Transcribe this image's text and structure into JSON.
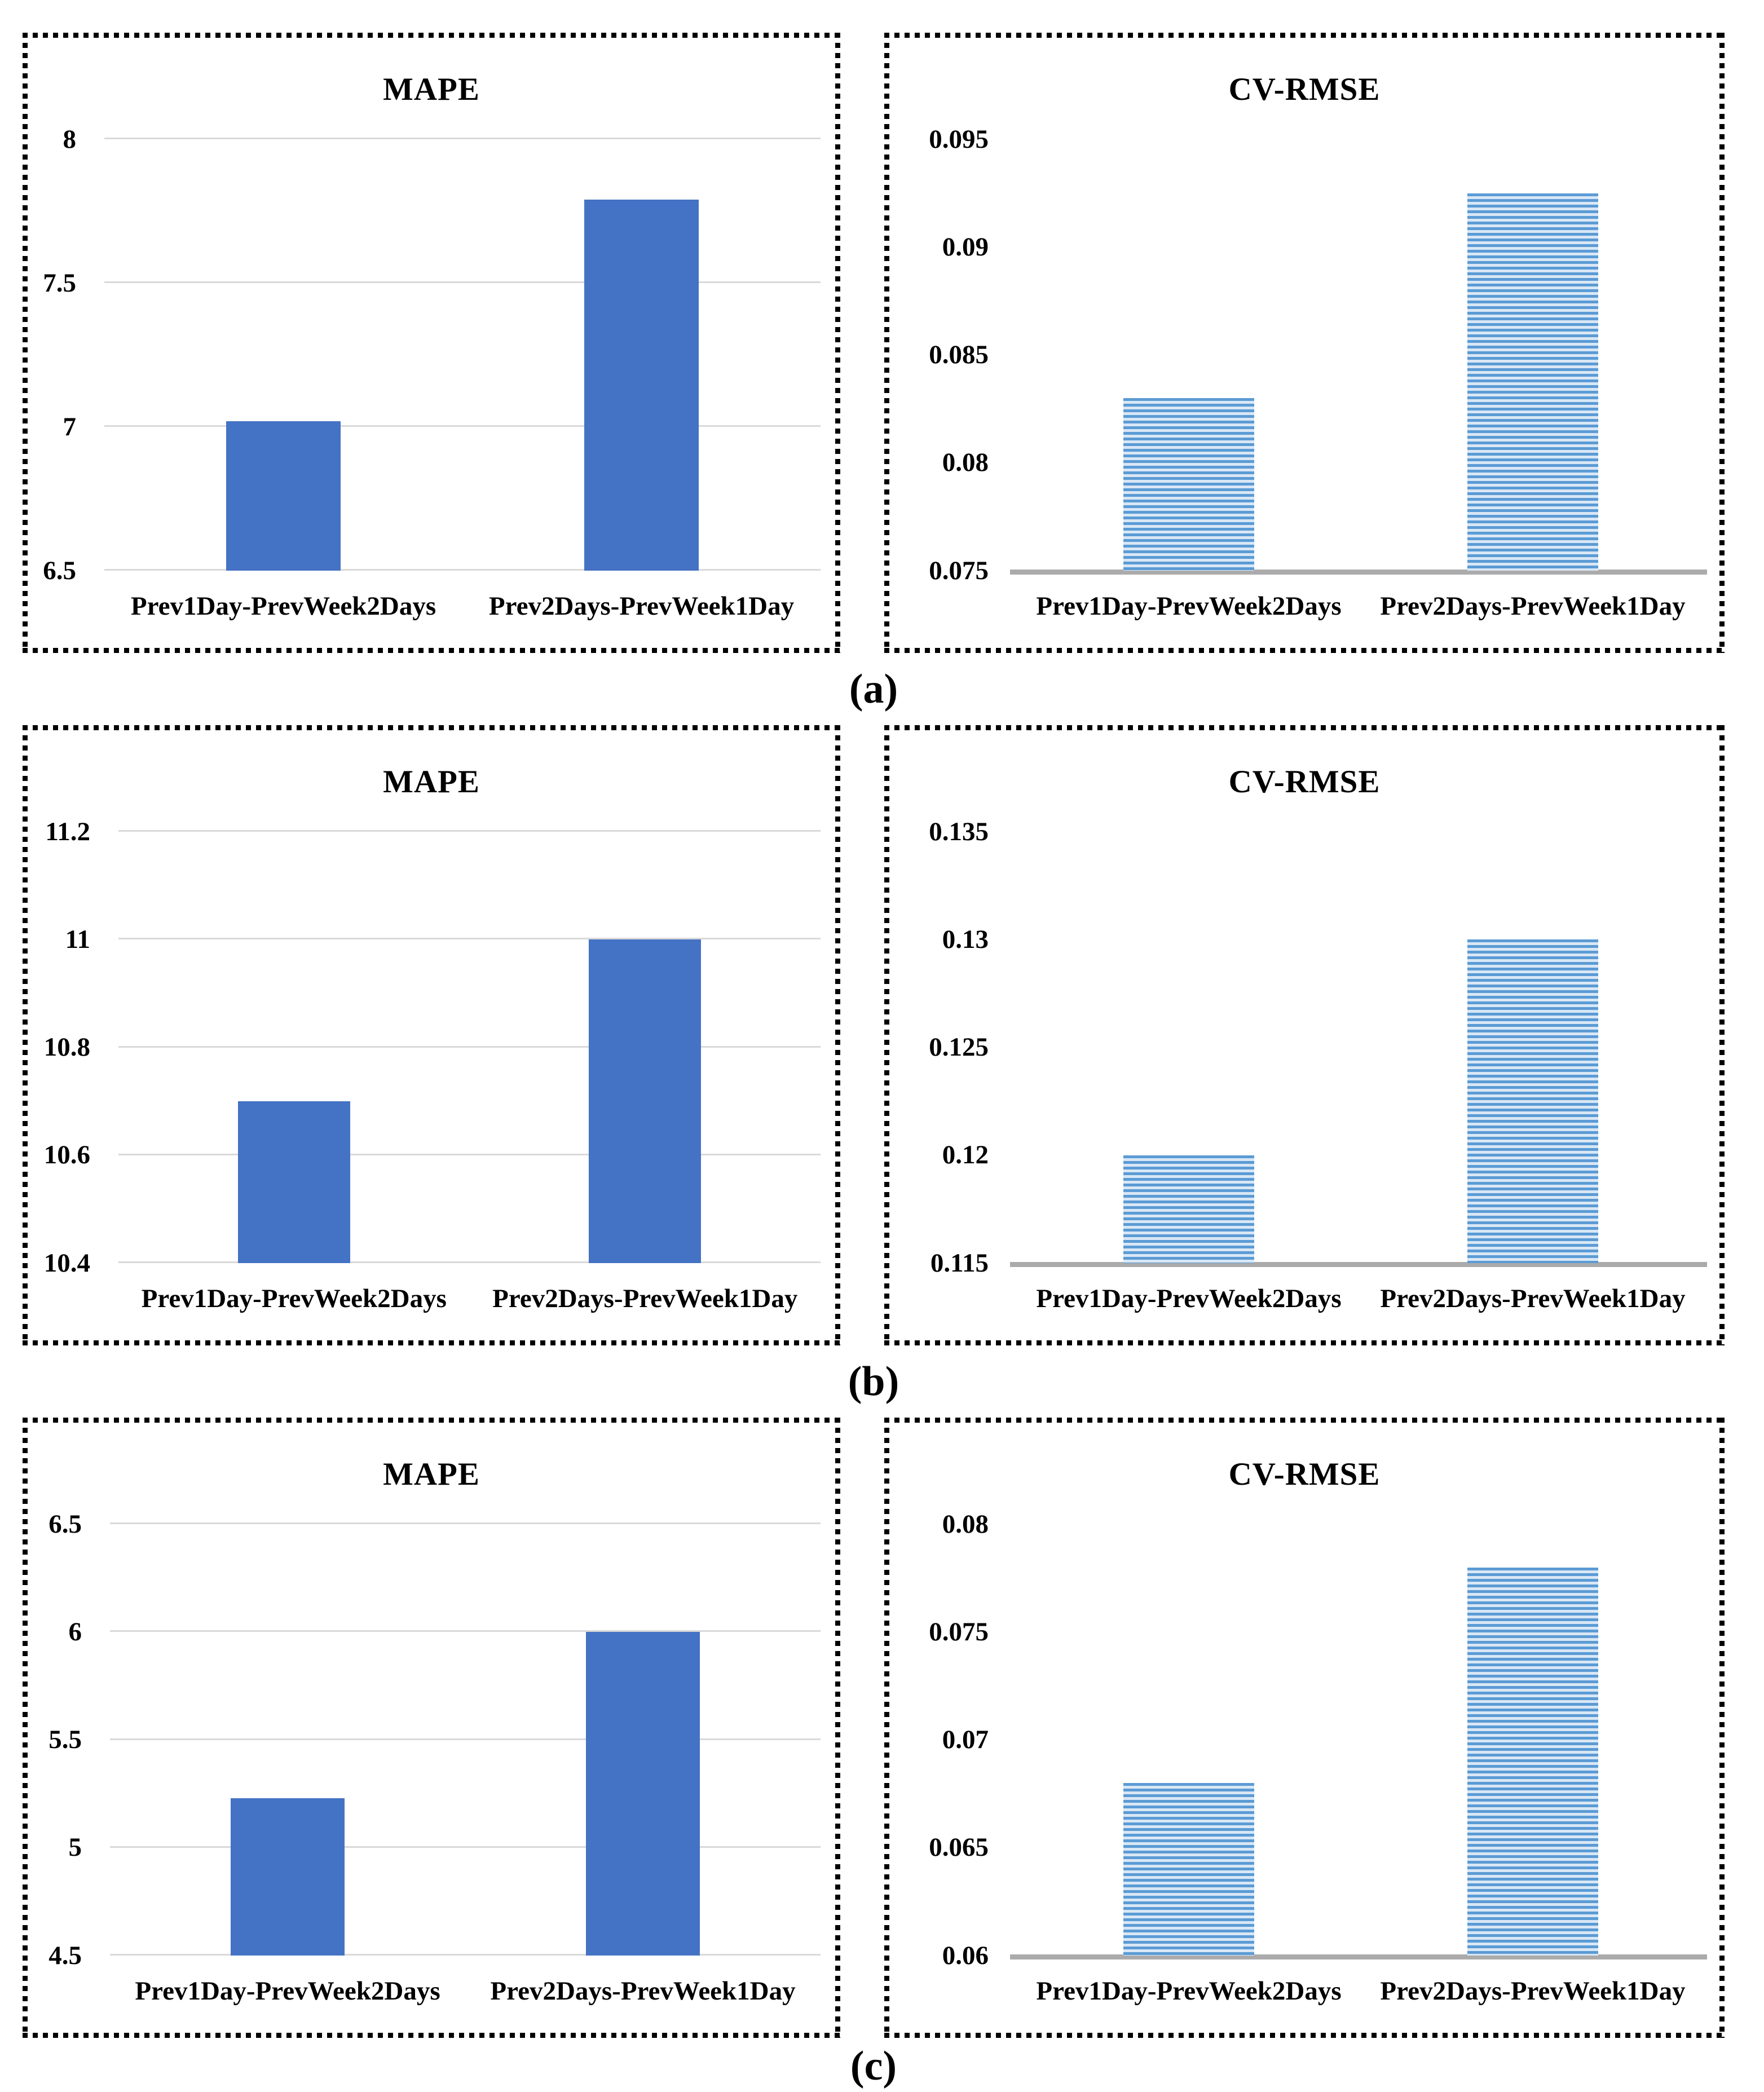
{
  "panel_labels": [
    "(a)",
    "(b)",
    "(c)"
  ],
  "colors": {
    "solid_bar": "#4472C4",
    "stripe_dark": "#5B9BD5",
    "stripe_light": "#D9E7F5",
    "gridline": "#D9D9D9",
    "axis_baseline": "#ABABAB",
    "border": "#000000",
    "text": "#000000",
    "background": "#FFFFFF"
  },
  "chart_data": [
    {
      "panel": "a",
      "side": "left",
      "type": "bar",
      "title": "MAPE",
      "categories": [
        "Prev1Day-PrevWeek2Days",
        "Prev2Days-PrevWeek1Day"
      ],
      "values": [
        7.02,
        7.79
      ],
      "ylim": [
        6.5,
        8
      ],
      "yticks": [
        "6.5",
        "7",
        "7.5",
        "8"
      ],
      "grid": true,
      "baseline": false,
      "bar_style": "solid",
      "xlabel": "",
      "ylabel": ""
    },
    {
      "panel": "a",
      "side": "right",
      "type": "bar",
      "title": "CV-RMSE",
      "categories": [
        "Prev1Day-PrevWeek2Days",
        "Prev2Days-PrevWeek1Day"
      ],
      "values": [
        0.083,
        0.0925
      ],
      "ylim": [
        0.075,
        0.095
      ],
      "yticks": [
        "0.075",
        "0.08",
        "0.085",
        "0.09",
        "0.095"
      ],
      "grid": false,
      "baseline": true,
      "bar_style": "striped",
      "xlabel": "",
      "ylabel": ""
    },
    {
      "panel": "b",
      "side": "left",
      "type": "bar",
      "title": "MAPE",
      "categories": [
        "Prev1Day-PrevWeek2Days",
        "Prev2Days-PrevWeek1Day"
      ],
      "values": [
        10.7,
        11.0
      ],
      "ylim": [
        10.4,
        11.2
      ],
      "yticks": [
        "10.4",
        "10.6",
        "10.8",
        "11",
        "11.2"
      ],
      "grid": true,
      "baseline": false,
      "bar_style": "solid",
      "xlabel": "",
      "ylabel": ""
    },
    {
      "panel": "b",
      "side": "right",
      "type": "bar",
      "title": "CV-RMSE",
      "categories": [
        "Prev1Day-PrevWeek2Days",
        "Prev2Days-PrevWeek1Day"
      ],
      "values": [
        0.12,
        0.13
      ],
      "ylim": [
        0.115,
        0.135
      ],
      "yticks": [
        "0.115",
        "0.12",
        "0.125",
        "0.13",
        "0.135"
      ],
      "grid": false,
      "baseline": true,
      "bar_style": "striped",
      "xlabel": "",
      "ylabel": ""
    },
    {
      "panel": "c",
      "side": "left",
      "type": "bar",
      "title": "MAPE",
      "categories": [
        "Prev1Day-PrevWeek2Days",
        "Prev2Days-PrevWeek1Day"
      ],
      "values": [
        5.23,
        6.0
      ],
      "ylim": [
        4.5,
        6.5
      ],
      "yticks": [
        "4.5",
        "5",
        "5.5",
        "6",
        "6.5"
      ],
      "grid": true,
      "baseline": false,
      "bar_style": "solid",
      "xlabel": "",
      "ylabel": ""
    },
    {
      "panel": "c",
      "side": "right",
      "type": "bar",
      "title": "CV-RMSE",
      "categories": [
        "Prev1Day-PrevWeek2Days",
        "Prev2Days-PrevWeek1Day"
      ],
      "values": [
        0.068,
        0.078
      ],
      "ylim": [
        0.06,
        0.08
      ],
      "yticks": [
        "0.06",
        "0.065",
        "0.07",
        "0.075",
        "0.08"
      ],
      "grid": false,
      "baseline": true,
      "bar_style": "striped",
      "xlabel": "",
      "ylabel": ""
    }
  ]
}
